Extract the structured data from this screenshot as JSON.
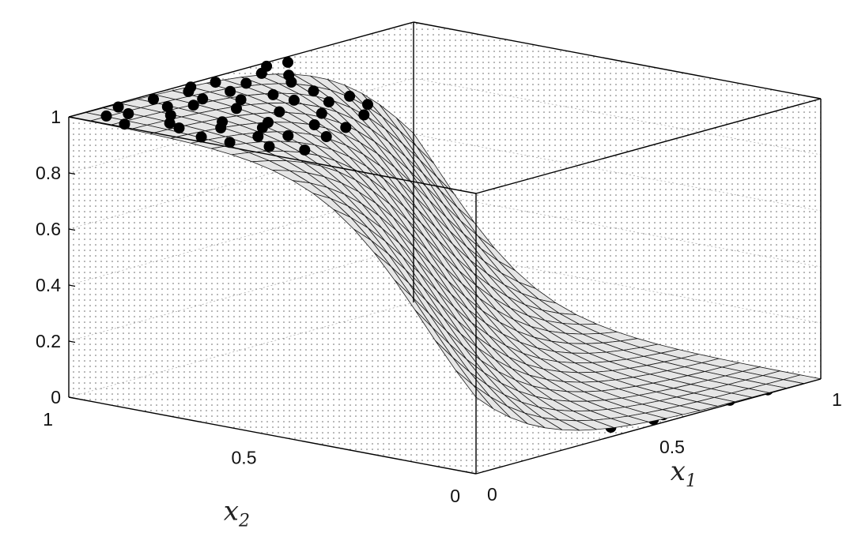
{
  "chart_data": {
    "type": "surface3d_scatter",
    "title": "",
    "xlabel": "x",
    "xlabel_sub": "1",
    "ylabel": "x",
    "ylabel_sub": "2",
    "zlabel": "",
    "xlim": [
      0,
      1
    ],
    "ylim": [
      0,
      1
    ],
    "zlim": [
      0,
      1
    ],
    "x_ticks": [
      {
        "v": 0,
        "label": "0"
      },
      {
        "v": 0.5,
        "label": "0.5"
      },
      {
        "v": 1,
        "label": "1"
      }
    ],
    "y_ticks": [
      {
        "v": 0,
        "label": "0"
      },
      {
        "v": 0.5,
        "label": "0.5"
      },
      {
        "v": 1,
        "label": "1"
      }
    ],
    "z_ticks": [
      {
        "v": 0,
        "label": "0"
      },
      {
        "v": 0.2,
        "label": "0.2"
      },
      {
        "v": 0.4,
        "label": "0.4"
      },
      {
        "v": 0.6,
        "label": "0.6"
      },
      {
        "v": 0.8,
        "label": "0.8"
      },
      {
        "v": 1,
        "label": "1"
      }
    ],
    "grid": true,
    "surface": {
      "function": "logistic",
      "mesh_size": 20,
      "center": 0.52,
      "slope": 14,
      "x1_weight": 0.45,
      "x2_weight": 0.55
    },
    "scatter": {
      "marker": "filled-circle",
      "color": "#000000",
      "class1_value": 1,
      "class0_value": 0,
      "class1_points": [
        [
          0.05,
          0.95
        ],
        [
          0.12,
          0.98
        ],
        [
          0.18,
          0.91
        ],
        [
          0.08,
          0.82
        ],
        [
          0.22,
          0.88
        ],
        [
          0.3,
          0.96
        ],
        [
          0.15,
          0.75
        ],
        [
          0.25,
          0.8
        ],
        [
          0.03,
          0.7
        ],
        [
          0.35,
          0.9
        ],
        [
          0.1,
          0.62
        ],
        [
          0.2,
          0.68
        ],
        [
          0.28,
          0.72
        ],
        [
          0.38,
          0.82
        ],
        [
          0.05,
          0.55
        ],
        [
          0.14,
          0.58
        ],
        [
          0.32,
          0.65
        ],
        [
          0.42,
          0.92
        ],
        [
          0.45,
          0.78
        ],
        [
          0.02,
          0.88
        ],
        [
          0.4,
          0.7
        ],
        [
          0.24,
          0.6
        ],
        [
          0.48,
          0.86
        ],
        [
          0.07,
          0.48
        ],
        [
          0.18,
          0.52
        ],
        [
          0.36,
          0.58
        ],
        [
          0.5,
          0.95
        ],
        [
          0.55,
          0.98
        ],
        [
          0.33,
          0.98
        ],
        [
          0.27,
          0.9
        ],
        [
          0.13,
          0.86
        ],
        [
          0.43,
          0.63
        ],
        [
          0.09,
          0.93
        ],
        [
          0.21,
          0.97
        ],
        [
          0.39,
          0.97
        ],
        [
          0.16,
          0.66
        ],
        [
          0.31,
          0.84
        ],
        [
          0.46,
          0.7
        ],
        [
          0.03,
          0.63
        ],
        [
          0.26,
          0.54
        ],
        [
          0.52,
          0.9
        ],
        [
          0.11,
          0.72
        ],
        [
          0.37,
          0.76
        ],
        [
          0.6,
          0.97
        ],
        [
          0.06,
          0.78
        ]
      ],
      "class0_points": [
        [
          0.95,
          0.05
        ],
        [
          0.88,
          0.12
        ],
        [
          0.92,
          0.2
        ],
        [
          0.82,
          0.08
        ],
        [
          0.75,
          0.15
        ],
        [
          0.98,
          0.3
        ],
        [
          0.85,
          0.28
        ],
        [
          0.7,
          0.05
        ],
        [
          0.65,
          0.18
        ],
        [
          0.9,
          0.4
        ],
        [
          0.78,
          0.35
        ],
        [
          0.6,
          0.1
        ],
        [
          0.72,
          0.25
        ],
        [
          0.96,
          0.15
        ],
        [
          0.55,
          0.03
        ],
        [
          0.62,
          0.3
        ],
        [
          0.8,
          0.45
        ],
        [
          0.68,
          0.4
        ],
        [
          0.93,
          0.48
        ],
        [
          0.58,
          0.22
        ],
        [
          0.5,
          0.12
        ],
        [
          0.87,
          0.02
        ],
        [
          0.99,
          0.42
        ],
        [
          0.74,
          0.5
        ],
        [
          0.66,
          0.08
        ],
        [
          0.53,
          0.35
        ],
        [
          0.45,
          0.05
        ],
        [
          0.84,
          0.18
        ],
        [
          0.91,
          0.33
        ],
        [
          0.77,
          0.22
        ],
        [
          0.63,
          0.45
        ],
        [
          0.56,
          0.28
        ],
        [
          0.71,
          0.12
        ],
        [
          0.97,
          0.08
        ],
        [
          0.48,
          0.2
        ],
        [
          0.83,
          0.38
        ],
        [
          0.69,
          0.31
        ],
        [
          0.59,
          0.04
        ],
        [
          0.89,
          0.26
        ],
        [
          0.76,
          0.02
        ],
        [
          0.64,
          0.15
        ],
        [
          0.94,
          0.36
        ],
        [
          0.52,
          0.42
        ],
        [
          0.81,
          0.1
        ],
        [
          0.73,
          0.43
        ]
      ]
    }
  }
}
